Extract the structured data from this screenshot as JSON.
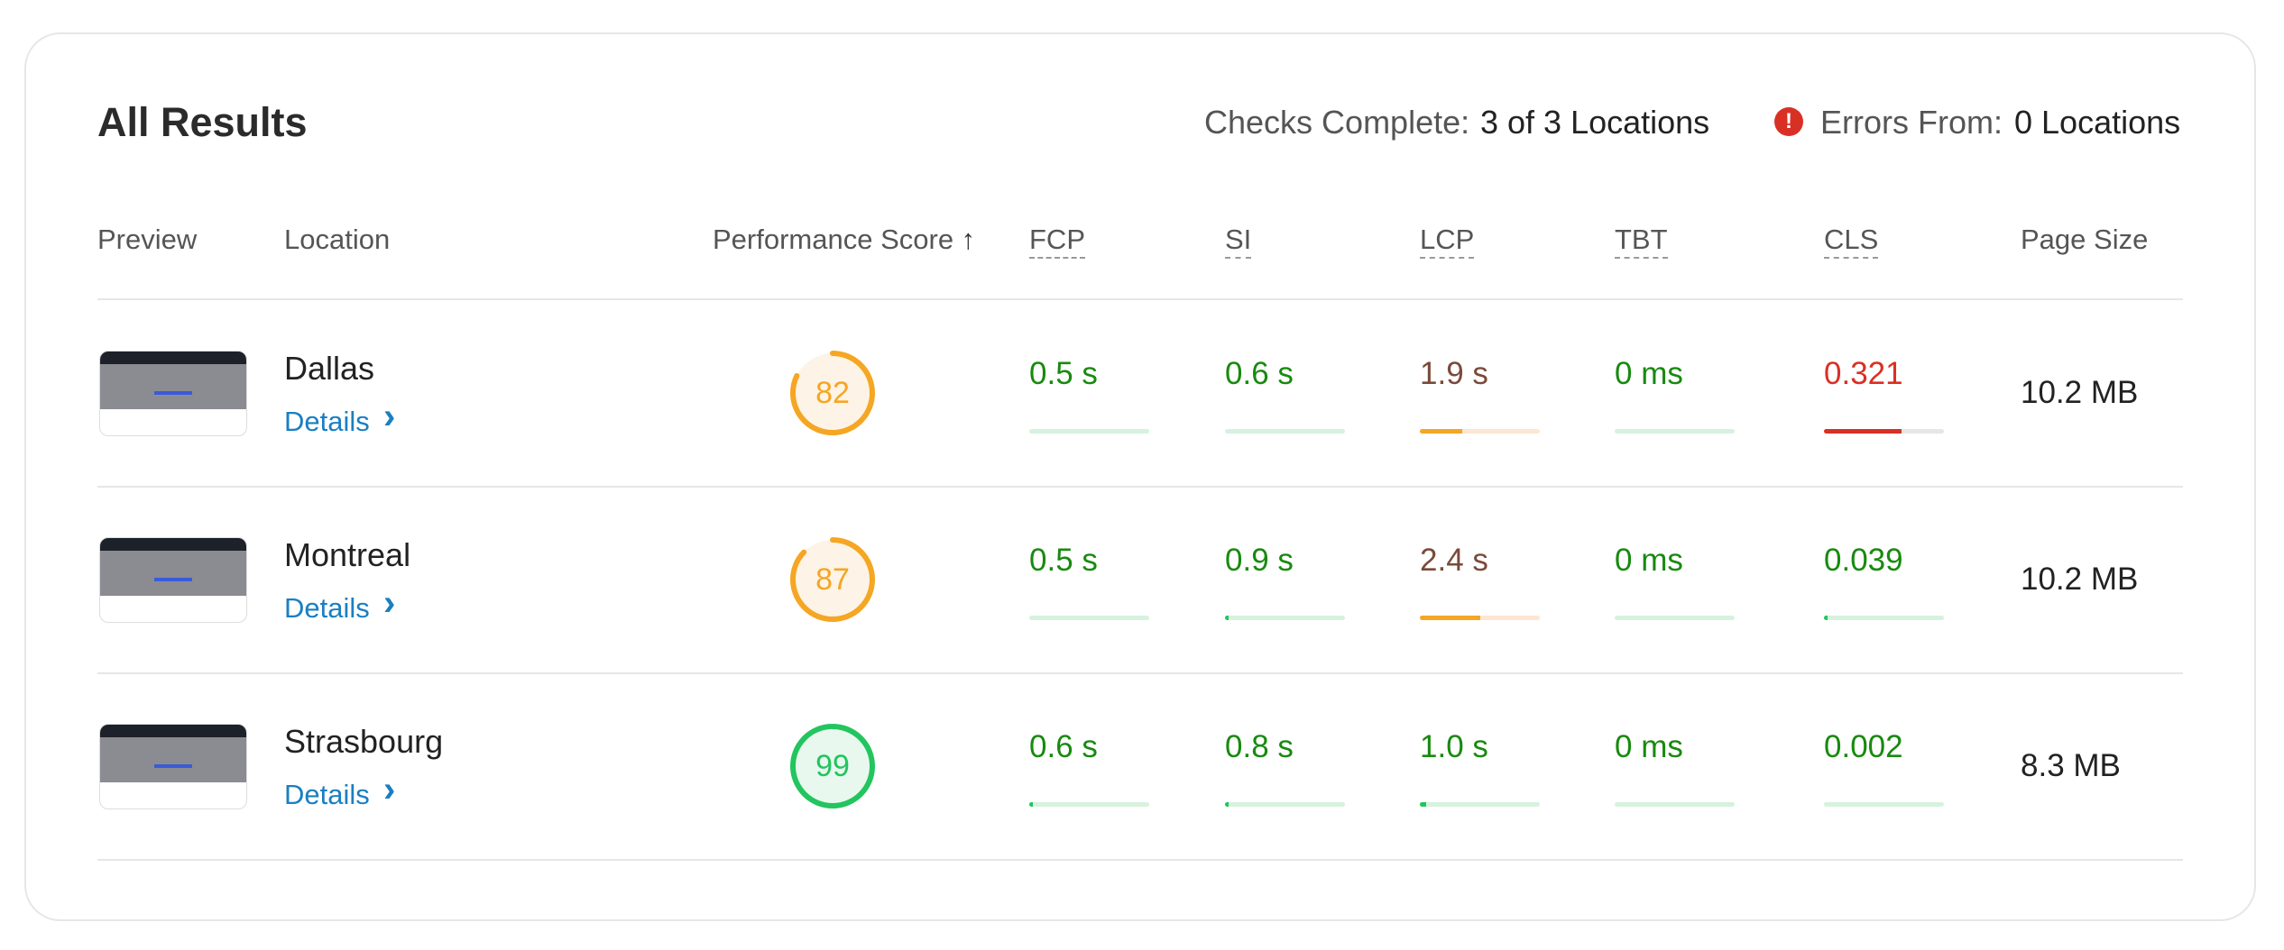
{
  "header": {
    "title": "All Results",
    "checks_label": "Checks Complete:",
    "checks_value": "3 of 3 Locations",
    "errors_label": "Errors From:",
    "errors_value": "0 Locations"
  },
  "table": {
    "columns": [
      "Preview",
      "Location",
      "Performance Score",
      "FCP",
      "SI",
      "LCP",
      "TBT",
      "CLS",
      "Page Size"
    ],
    "rows": [
      {
        "location": "Dallas",
        "details": "Details",
        "score": 82,
        "metrics": [
          "0.5 s",
          "0.6 s",
          "1.9 s",
          "0 ms",
          "0.321"
        ],
        "page_size": "10.2 MB"
      },
      {
        "location": "Montreal",
        "details": "Details",
        "score": 87,
        "metrics": [
          "0.5 s",
          "0.9 s",
          "2.4 s",
          "0 ms",
          "0.039"
        ],
        "page_size": "10.2 MB"
      },
      {
        "location": "Strasbourg",
        "details": "Details",
        "score": 99,
        "metrics": [
          "0.6 s",
          "0.8 s",
          "1.0 s",
          "0 ms",
          "0.002"
        ],
        "page_size": "8.3 MB"
      }
    ]
  }
}
